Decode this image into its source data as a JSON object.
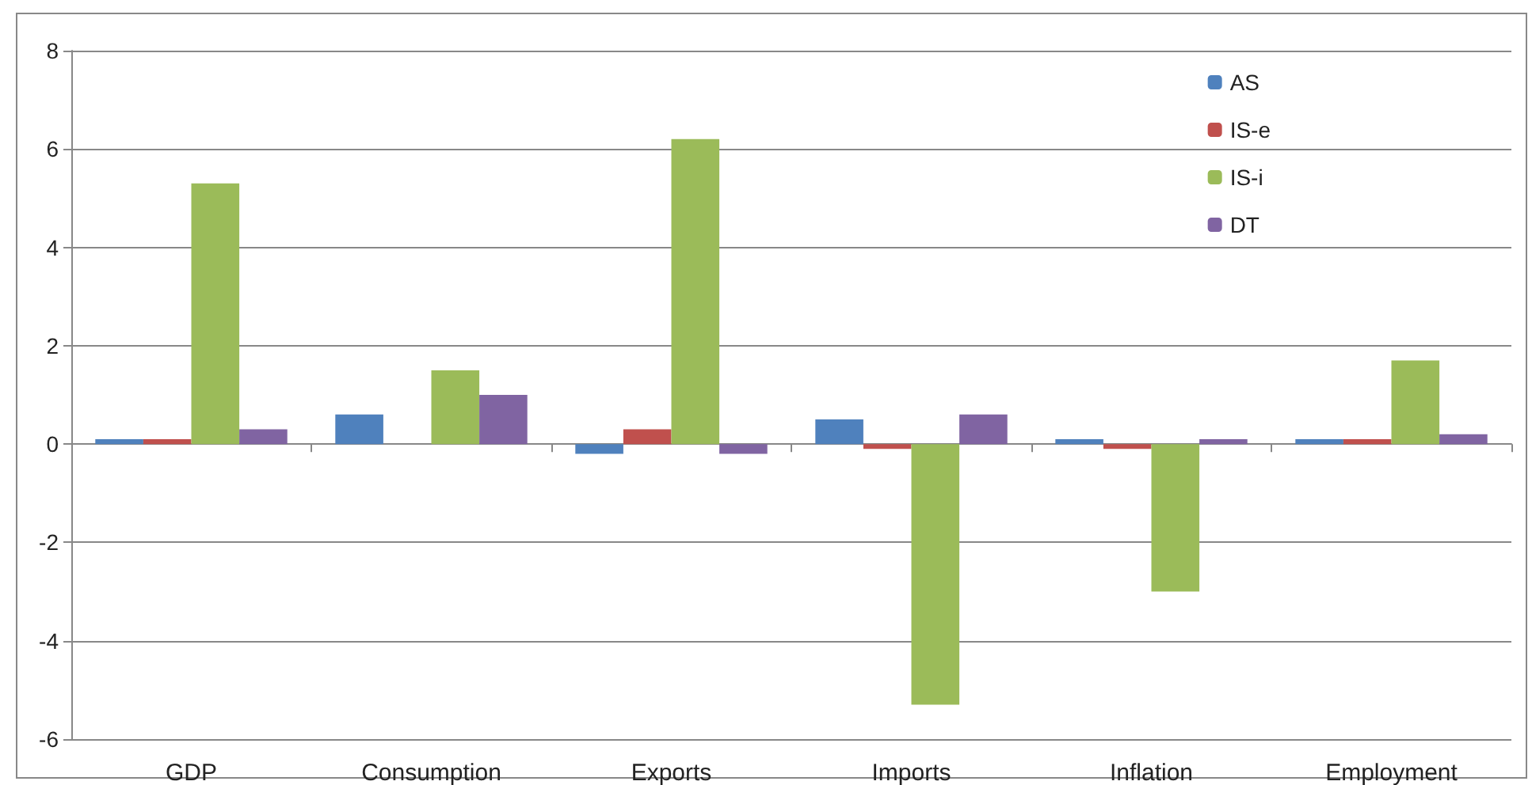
{
  "chart_data": {
    "type": "bar",
    "categories": [
      "GDP",
      "Consumption",
      "Exports",
      "Imports",
      "Inflation",
      "Employment"
    ],
    "series": [
      {
        "name": "AS",
        "color": "#4f81bd",
        "values": [
          0.1,
          0.6,
          -0.2,
          0.5,
          0.1,
          0.1
        ]
      },
      {
        "name": "IS-e",
        "color": "#c0504d",
        "values": [
          0.1,
          0,
          0.3,
          -0.1,
          -0.1,
          0.1
        ]
      },
      {
        "name": "IS-i",
        "color": "#9bbb59",
        "values": [
          5.3,
          1.5,
          6.2,
          -5.3,
          -3.0,
          1.7
        ]
      },
      {
        "name": "DT",
        "color": "#8064a2",
        "values": [
          0.3,
          1.0,
          -0.2,
          0.6,
          0.1,
          0.2
        ]
      }
    ],
    "ylim": [
      -6,
      8
    ],
    "yticks": [
      -6,
      -4,
      -2,
      0,
      2,
      4,
      6,
      8
    ],
    "grid": "y",
    "legend": "top right"
  }
}
